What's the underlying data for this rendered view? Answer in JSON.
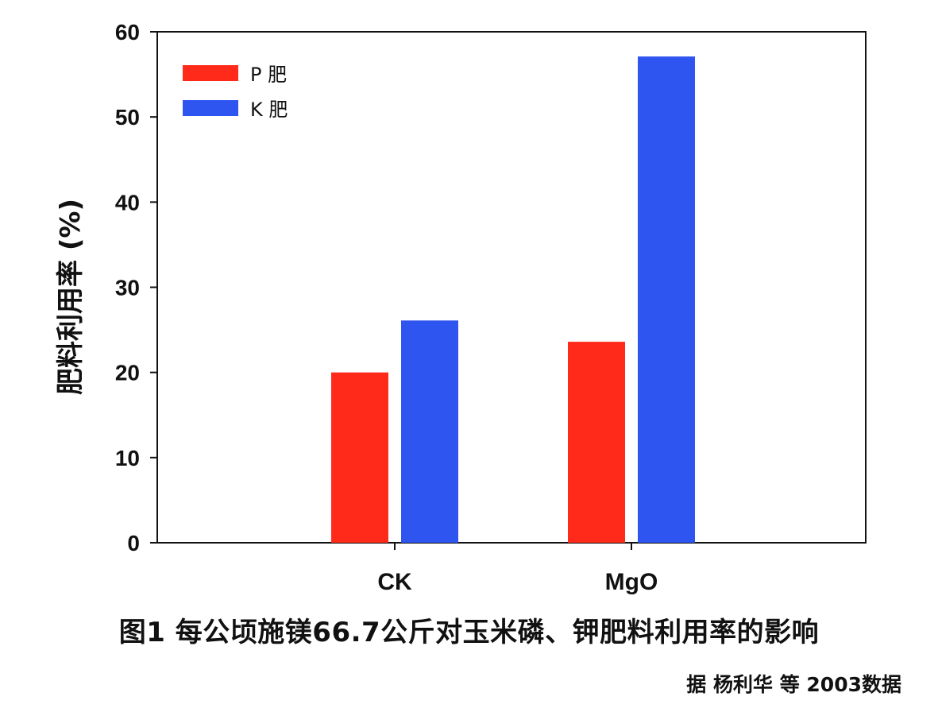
{
  "chart_data": {
    "type": "bar",
    "categories": [
      "CK",
      "MgO"
    ],
    "series": [
      {
        "name": "P 肥",
        "color": "#ff2a1a",
        "values": [
          20,
          23.6
        ]
      },
      {
        "name": "K 肥",
        "color": "#2f55f0",
        "values": [
          26.1,
          57.1
        ]
      }
    ],
    "ylabel": "肥料利用率 (%)",
    "xlabel": "",
    "ylim": [
      0,
      60
    ],
    "yticks": [
      0,
      10,
      20,
      30,
      40,
      50,
      60
    ],
    "legend_position": "top-left",
    "grid": false
  },
  "caption": "图1 每公顷施镁66.7公斤对玉米磷、钾肥料利用率的影响",
  "source": "据  杨利华 等 2003数据"
}
